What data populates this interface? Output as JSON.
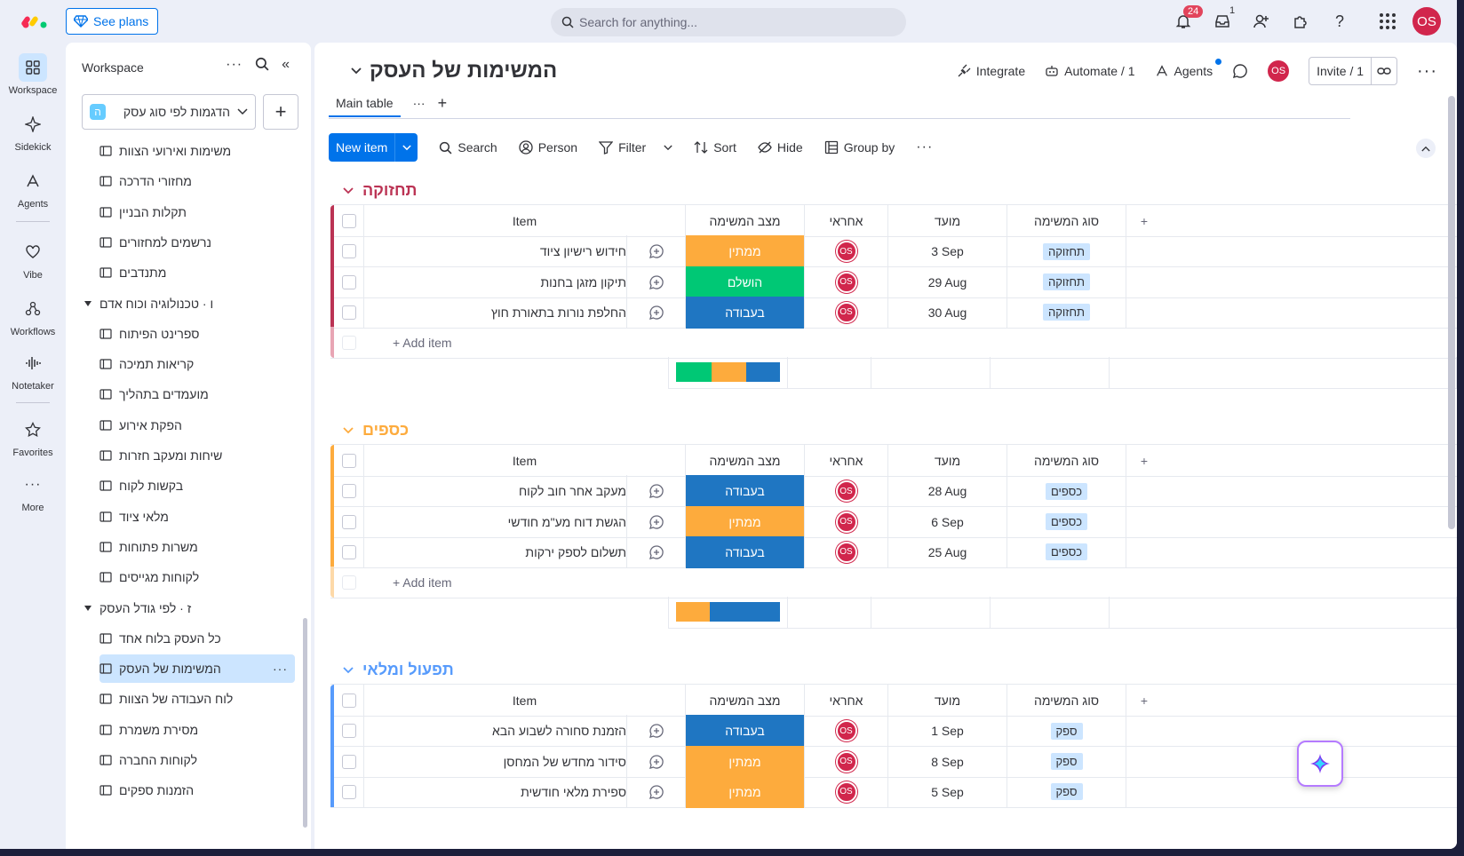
{
  "topbar": {
    "see_plans": "See plans",
    "search_placeholder": "Search for anything...",
    "notifications_count": "24",
    "inbox_count": "1",
    "user_initials": "OS"
  },
  "rail": [
    {
      "label": "Workspace",
      "icon": "grid-icon",
      "active": true
    },
    {
      "label": "Sidekick",
      "icon": "sparkle-icon"
    },
    {
      "label": "Agents",
      "icon": "agents-icon"
    },
    {
      "label": "Vibe",
      "icon": "heart-icon"
    },
    {
      "label": "Workflows",
      "icon": "workflow-icon"
    },
    {
      "label": "Notetaker",
      "icon": "audio-icon"
    },
    {
      "label": "Favorites",
      "icon": "star-icon"
    },
    {
      "label": "More",
      "icon": "more-icon"
    }
  ],
  "workspace": {
    "header": "Workspace",
    "selected": "הדגמות לפי סוג עסק",
    "chip": "ה",
    "items": [
      {
        "label": "משימות ואירועי הצוות",
        "type": "board"
      },
      {
        "label": "מחזורי הדרכה",
        "type": "board"
      },
      {
        "label": "תקלות הבניין",
        "type": "board"
      },
      {
        "label": "נרשמים למחזורים",
        "type": "board"
      },
      {
        "label": "מתנדבים",
        "type": "board"
      },
      {
        "label": "ו · טכנולוגיה וכוח אדם",
        "type": "folder"
      },
      {
        "label": "ספרינט הפיתוח",
        "type": "board"
      },
      {
        "label": "קריאות תמיכה",
        "type": "board"
      },
      {
        "label": "מועמדים בתהליך",
        "type": "board"
      },
      {
        "label": "הפקת אירוע",
        "type": "board"
      },
      {
        "label": "שיחות ומעקב חזרות",
        "type": "board"
      },
      {
        "label": "בקשות לקוח",
        "type": "board"
      },
      {
        "label": "מלאי ציוד",
        "type": "board"
      },
      {
        "label": "משרות פתוחות",
        "type": "board"
      },
      {
        "label": "לקוחות מגייסים",
        "type": "board"
      },
      {
        "label": "ז · לפי גודל העסק",
        "type": "folder"
      },
      {
        "label": "כל העסק בלוח אחד",
        "type": "board"
      },
      {
        "label": "המשימות של העסק",
        "type": "board",
        "selected": true
      },
      {
        "label": "לוח העבודה של הצוות",
        "type": "board"
      },
      {
        "label": "מסירת משמרת",
        "type": "board"
      },
      {
        "label": "לקוחות החברה",
        "type": "board"
      },
      {
        "label": "הזמנות ספקים",
        "type": "board"
      }
    ]
  },
  "board": {
    "title": "המשימות של העסק",
    "integrate": "Integrate",
    "automate": "Automate / 1",
    "agents": "Agents",
    "invite": "Invite / 1",
    "avatar": "OS",
    "tab_main": "Main table",
    "toolbar": {
      "new_item": "New item",
      "search": "Search",
      "person": "Person",
      "filter": "Filter",
      "sort": "Sort",
      "hide": "Hide",
      "group_by": "Group by"
    },
    "columns": {
      "item": "Item",
      "status": "מצב המשימה",
      "owner": "אחראי",
      "date": "מועד",
      "type": "סוג המשימה"
    },
    "add_item": "+ Add item",
    "colors": {
      "pending": "#fdab3d",
      "done": "#00c875",
      "working": "#1f76c2"
    },
    "groups": [
      {
        "name": "תחזוקה",
        "color": "#bb3354",
        "light": "#e8a5b4",
        "rows": [
          {
            "item": "חידוש רישיון ציוד",
            "status": "ממתין",
            "status_key": "pending",
            "owner": "OS",
            "date": "3 Sep",
            "type": "תחזוקה"
          },
          {
            "item": "תיקון מזגן בחנות",
            "status": "הושלם",
            "status_key": "done",
            "owner": "OS",
            "date": "29 Aug",
            "type": "תחזוקה"
          },
          {
            "item": "החלפת נורות בתאורת חוץ",
            "status": "בעבודה",
            "status_key": "working",
            "owner": "OS",
            "date": "30 Aug",
            "type": "תחזוקה"
          }
        ],
        "summary": [
          {
            "key": "done",
            "share": 0.34
          },
          {
            "key": "pending",
            "share": 0.33
          },
          {
            "key": "working",
            "share": 0.33
          }
        ]
      },
      {
        "name": "כספים",
        "color": "#fdab3d",
        "light": "#fdd9a8",
        "rows": [
          {
            "item": "מעקב אחר חוב לקוח",
            "status": "בעבודה",
            "status_key": "working",
            "owner": "OS",
            "date": "28 Aug",
            "type": "כספים"
          },
          {
            "item": "הגשת דוח מע\"מ חודשי",
            "status": "ממתין",
            "status_key": "pending",
            "owner": "OS",
            "date": "6 Sep",
            "type": "כספים"
          },
          {
            "item": "תשלום לספק ירקות",
            "status": "בעבודה",
            "status_key": "working",
            "owner": "OS",
            "date": "25 Aug",
            "type": "כספים"
          }
        ],
        "summary": [
          {
            "key": "pending",
            "share": 0.33
          },
          {
            "key": "working",
            "share": 0.67
          }
        ]
      },
      {
        "name": "תפעול ומלאי",
        "color": "#579bfc",
        "light": "#b5d2fd",
        "rows": [
          {
            "item": "הזמנת סחורה לשבוע הבא",
            "status": "בעבודה",
            "status_key": "working",
            "owner": "OS",
            "date": "1 Sep",
            "type": "ספק"
          },
          {
            "item": "סידור מחדש של המחסן",
            "status": "ממתין",
            "status_key": "pending",
            "owner": "OS",
            "date": "8 Sep",
            "type": "ספק"
          },
          {
            "item": "ספירת מלאי חודשית",
            "status": "ממתין",
            "status_key": "pending",
            "owner": "OS",
            "date": "5 Sep",
            "type": "ספק"
          }
        ],
        "summary": []
      }
    ]
  }
}
